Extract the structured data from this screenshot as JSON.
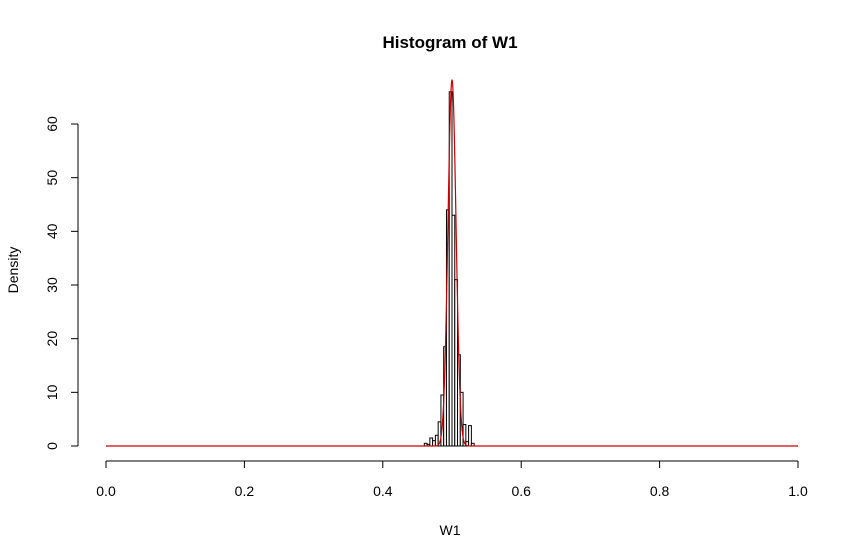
{
  "chart_data": {
    "type": "bar",
    "title": "Histogram of W1",
    "xlabel": "W1",
    "ylabel": "Density",
    "xlim": [
      0.0,
      1.0
    ],
    "ylim": [
      0,
      68
    ],
    "x_ticks": [
      "0.0",
      "0.2",
      "0.4",
      "0.6",
      "0.8",
      "1.0"
    ],
    "y_ticks": [
      "0",
      "10",
      "20",
      "30",
      "40",
      "50",
      "60"
    ],
    "bin_width": 0.004,
    "bins": [
      {
        "x0": 0.46,
        "x1": 0.464,
        "value": 0.5
      },
      {
        "x0": 0.464,
        "x1": 0.468,
        "value": 0.3
      },
      {
        "x0": 0.468,
        "x1": 0.472,
        "value": 1.5
      },
      {
        "x0": 0.472,
        "x1": 0.476,
        "value": 1.0
      },
      {
        "x0": 0.476,
        "x1": 0.48,
        "value": 2.0
      },
      {
        "x0": 0.48,
        "x1": 0.484,
        "value": 4.5
      },
      {
        "x0": 0.484,
        "x1": 0.488,
        "value": 9.5
      },
      {
        "x0": 0.488,
        "x1": 0.492,
        "value": 18.5
      },
      {
        "x0": 0.492,
        "x1": 0.496,
        "value": 44
      },
      {
        "x0": 0.496,
        "x1": 0.5,
        "value": 66
      },
      {
        "x0": 0.5,
        "x1": 0.504,
        "value": 43
      },
      {
        "x0": 0.504,
        "x1": 0.508,
        "value": 31
      },
      {
        "x0": 0.508,
        "x1": 0.512,
        "value": 17
      },
      {
        "x0": 0.512,
        "x1": 0.516,
        "value": 10
      },
      {
        "x0": 0.516,
        "x1": 0.52,
        "value": 4
      },
      {
        "x0": 0.52,
        "x1": 0.524,
        "value": 0.8
      },
      {
        "x0": 0.524,
        "x1": 0.528,
        "value": 3.8
      },
      {
        "x0": 0.528,
        "x1": 0.532,
        "value": 0.5
      }
    ],
    "density_curve": {
      "color": "#cc0000",
      "type": "normal",
      "mean": 0.5,
      "sd": 0.00585,
      "x_range": [
        0.0,
        1.0
      ]
    },
    "grid": false,
    "legend": "none"
  }
}
